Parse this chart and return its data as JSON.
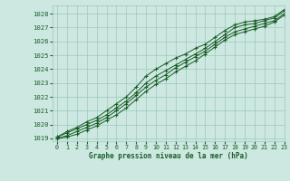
{
  "xlabel": "Graphe pression niveau de la mer (hPa)",
  "xlim": [
    -0.5,
    23
  ],
  "ylim": [
    1018.8,
    1028.6
  ],
  "yticks": [
    1019,
    1020,
    1021,
    1022,
    1023,
    1024,
    1025,
    1026,
    1027,
    1028
  ],
  "xticks": [
    0,
    1,
    2,
    3,
    4,
    5,
    6,
    7,
    8,
    9,
    10,
    11,
    12,
    13,
    14,
    15,
    16,
    17,
    18,
    19,
    20,
    21,
    22,
    23
  ],
  "bg_color": "#cce8e0",
  "grid_color": "#9ec8bc",
  "line_color": "#1a5c28",
  "series": [
    [
      1019.1,
      1019.5,
      1019.8,
      1020.2,
      1020.5,
      1021.0,
      1021.5,
      1022.0,
      1022.7,
      1023.5,
      1024.0,
      1024.4,
      1024.8,
      1025.1,
      1025.5,
      1025.8,
      1026.3,
      1026.8,
      1027.2,
      1027.4,
      1027.5,
      1027.6,
      1027.8,
      1028.3
    ],
    [
      1019.1,
      1019.4,
      1019.7,
      1020.0,
      1020.3,
      1020.7,
      1021.2,
      1021.7,
      1022.3,
      1023.0,
      1023.5,
      1023.9,
      1024.3,
      1024.7,
      1025.1,
      1025.5,
      1026.0,
      1026.5,
      1027.0,
      1027.2,
      1027.3,
      1027.5,
      1027.7,
      1028.2
    ],
    [
      1019.0,
      1019.2,
      1019.5,
      1019.8,
      1020.1,
      1020.5,
      1021.0,
      1021.5,
      1022.1,
      1022.7,
      1023.2,
      1023.6,
      1024.1,
      1024.5,
      1024.9,
      1025.3,
      1025.8,
      1026.3,
      1026.7,
      1026.9,
      1027.1,
      1027.3,
      1027.5,
      1028.0
    ],
    [
      1019.0,
      1019.1,
      1019.3,
      1019.6,
      1019.9,
      1020.3,
      1020.7,
      1021.2,
      1021.8,
      1022.4,
      1022.9,
      1023.3,
      1023.8,
      1024.2,
      1024.6,
      1025.1,
      1025.6,
      1026.1,
      1026.5,
      1026.7,
      1026.9,
      1027.1,
      1027.4,
      1027.9
    ]
  ]
}
